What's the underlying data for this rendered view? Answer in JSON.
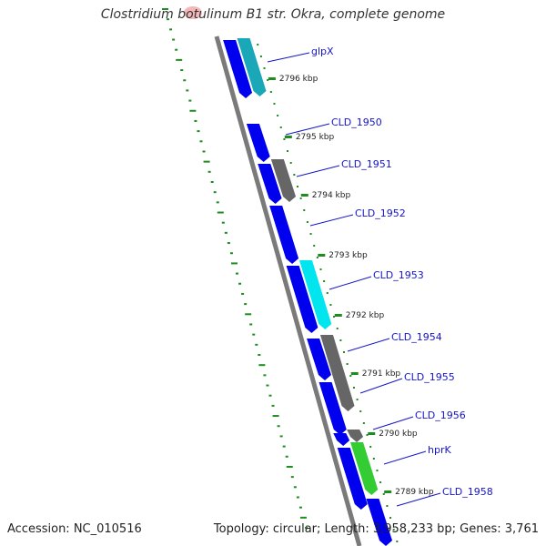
{
  "title": "Clostridium botulinum B1 str. Okra, complete genome",
  "footer": {
    "accession": "Accession: NC_010516",
    "summary": "Topology: circular; Length: 3,958,233 bp; Genes: 3,761"
  },
  "genes": [
    {
      "label": "glpX",
      "color": "#1aa8b8"
    },
    {
      "label": "CLD_1950",
      "color": "#0000ee"
    },
    {
      "label": "CLD_1951",
      "color": "#666666"
    },
    {
      "label": "CLD_1952",
      "color": "#0000ee"
    },
    {
      "label": "CLD_1953",
      "color": "#00e5ee"
    },
    {
      "label": "CLD_1954",
      "color": "#0000ee"
    },
    {
      "label": "CLD_1955",
      "color": "#666666"
    },
    {
      "label": "CLD_1956",
      "color": "#666666"
    },
    {
      "label": "hprK",
      "color": "#33cc33"
    },
    {
      "label": "CLD_1958",
      "color": "#0000ee"
    }
  ],
  "ticks": [
    "2796 kbp",
    "2795 kbp",
    "2794 kbp",
    "2793 kbp",
    "2792 kbp",
    "2791 kbp",
    "2790 kbp",
    "2789 kbp"
  ]
}
